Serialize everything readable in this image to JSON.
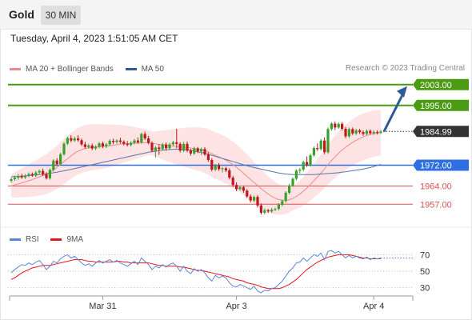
{
  "header": {
    "symbol": "Gold",
    "timeframe": "30 MIN"
  },
  "datetime": "Tuesday, April 4, 2023 1:51:05 AM CET",
  "credit": "Research © 2023 Trading Central",
  "legend": [
    {
      "label": "MA 20 + Bollinger Bands",
      "color": "#f08a8a"
    },
    {
      "label": "MA 50",
      "color": "#2d5b9a"
    }
  ],
  "rsi_legend": [
    {
      "label": "RSI",
      "color": "#5b86d6"
    },
    {
      "label": "9MA",
      "color": "#e8141b"
    }
  ],
  "colors": {
    "up": "#3aa02a",
    "down": "#c0161c",
    "resistance": "#4a9b12",
    "pivot": "#2f6fe0",
    "support": "#e05050",
    "bands": "#fde3e3",
    "current": "#333333",
    "arrow": "#2d5b9a"
  },
  "chart_data": [
    {
      "type": "candlestick",
      "title": "",
      "x_tick_labels": [
        "Mar 31",
        "Apr 3",
        "Apr 4"
      ],
      "current_price": {
        "label": "1984.99",
        "value": 1984.99
      },
      "levels": [
        {
          "label": "2003.00",
          "value": 2003.0,
          "kind": "resistance"
        },
        {
          "label": "1995.00",
          "value": 1995.0,
          "kind": "resistance"
        },
        {
          "label": "1972.00",
          "value": 1972.0,
          "kind": "pivot"
        },
        {
          "label": "1964.00",
          "value": 1964.0,
          "kind": "support"
        },
        {
          "label": "1957.00",
          "value": 1957.0,
          "kind": "support"
        }
      ],
      "ylim": [
        1950,
        2006
      ],
      "forecast_arrow": {
        "from": 1984.99,
        "to": 2003.0
      },
      "candles": [
        [
          1966.0,
          1967.2,
          1965.3,
          1966.6
        ],
        [
          1966.6,
          1968.0,
          1966.0,
          1967.2
        ],
        [
          1967.2,
          1968.6,
          1966.4,
          1967.8
        ],
        [
          1967.8,
          1968.7,
          1966.7,
          1967.3
        ],
        [
          1967.3,
          1968.6,
          1966.7,
          1968.0
        ],
        [
          1968.0,
          1969.2,
          1967.4,
          1968.6
        ],
        [
          1968.6,
          1969.2,
          1967.5,
          1968.1
        ],
        [
          1968.1,
          1969.8,
          1967.5,
          1969.2
        ],
        [
          1969.2,
          1970.4,
          1968.6,
          1969.8
        ],
        [
          1969.8,
          1970.7,
          1967.9,
          1968.5
        ],
        [
          1968.5,
          1969.3,
          1966.5,
          1967.0
        ],
        [
          1967.0,
          1970.8,
          1966.4,
          1970.2
        ],
        [
          1970.2,
          1974.3,
          1969.6,
          1973.8
        ],
        [
          1973.8,
          1974.7,
          1971.7,
          1972.4
        ],
        [
          1972.4,
          1976.8,
          1971.8,
          1976.2
        ],
        [
          1976.2,
          1980.9,
          1975.6,
          1980.3
        ],
        [
          1980.3,
          1983.0,
          1979.7,
          1982.4
        ],
        [
          1982.4,
          1983.5,
          1980.8,
          1981.5
        ],
        [
          1981.5,
          1983.0,
          1980.9,
          1982.3
        ],
        [
          1982.3,
          1983.5,
          1981.0,
          1981.6
        ],
        [
          1981.6,
          1982.2,
          1979.4,
          1980.0
        ],
        [
          1980.0,
          1981.0,
          1978.4,
          1979.0
        ],
        [
          1979.0,
          1980.2,
          1978.4,
          1979.6
        ],
        [
          1979.6,
          1980.3,
          1977.8,
          1978.4
        ],
        [
          1978.4,
          1979.7,
          1977.8,
          1979.1
        ],
        [
          1979.1,
          1981.0,
          1978.5,
          1980.4
        ],
        [
          1980.4,
          1981.1,
          1978.6,
          1979.2
        ],
        [
          1979.2,
          1980.6,
          1978.6,
          1980.0
        ],
        [
          1980.0,
          1982.0,
          1979.4,
          1981.4
        ],
        [
          1981.4,
          1982.2,
          1980.1,
          1980.9
        ],
        [
          1980.9,
          1982.0,
          1980.3,
          1981.5
        ],
        [
          1981.5,
          1982.6,
          1980.3,
          1981.0
        ],
        [
          1981.0,
          1981.6,
          1979.6,
          1980.2
        ],
        [
          1980.2,
          1981.3,
          1979.2,
          1979.8
        ],
        [
          1979.8,
          1981.2,
          1979.2,
          1980.6
        ],
        [
          1980.6,
          1982.1,
          1980.0,
          1981.5
        ],
        [
          1981.5,
          1982.7,
          1980.2,
          1980.8
        ],
        [
          1980.8,
          1984.5,
          1980.2,
          1984.0
        ],
        [
          1984.0,
          1984.9,
          1981.7,
          1982.3
        ],
        [
          1982.3,
          1983.3,
          1980.0,
          1980.6
        ],
        [
          1980.6,
          1981.2,
          1977.0,
          1977.6
        ],
        [
          1977.6,
          1979.4,
          1975.0,
          1978.8
        ],
        [
          1978.8,
          1980.0,
          1976.0,
          1978.2
        ],
        [
          1978.2,
          1980.6,
          1977.6,
          1980.0
        ],
        [
          1980.0,
          1980.7,
          1977.6,
          1978.5
        ],
        [
          1978.5,
          1980.6,
          1977.9,
          1980.0
        ],
        [
          1980.0,
          1981.4,
          1979.4,
          1980.8
        ],
        [
          1980.8,
          1986.0,
          1978.5,
          1980.2
        ],
        [
          1980.2,
          1980.8,
          1976.9,
          1977.6
        ],
        [
          1977.6,
          1981.0,
          1977.0,
          1980.2
        ],
        [
          1980.2,
          1981.1,
          1977.0,
          1977.6
        ],
        [
          1977.6,
          1978.3,
          1975.7,
          1976.5
        ],
        [
          1976.5,
          1979.1,
          1975.9,
          1978.5
        ],
        [
          1978.5,
          1979.0,
          1976.6,
          1977.3
        ],
        [
          1977.3,
          1978.8,
          1975.9,
          1978.2
        ],
        [
          1978.2,
          1979.0,
          1975.6,
          1976.1
        ],
        [
          1976.1,
          1976.9,
          1973.3,
          1974.0
        ],
        [
          1974.0,
          1974.7,
          1969.6,
          1970.3
        ],
        [
          1970.3,
          1972.5,
          1969.7,
          1971.9
        ],
        [
          1971.9,
          1972.8,
          1969.8,
          1970.5
        ],
        [
          1970.5,
          1971.4,
          1969.2,
          1970.8
        ],
        [
          1970.8,
          1971.4,
          1969.4,
          1970.0
        ],
        [
          1970.0,
          1970.8,
          1966.5,
          1967.2
        ],
        [
          1967.2,
          1967.9,
          1963.7,
          1964.4
        ],
        [
          1964.4,
          1965.4,
          1962.0,
          1962.8
        ],
        [
          1962.8,
          1964.0,
          1962.2,
          1963.5
        ],
        [
          1963.5,
          1964.2,
          1961.4,
          1962.2
        ],
        [
          1962.2,
          1962.8,
          1959.4,
          1960.0
        ],
        [
          1960.0,
          1960.8,
          1957.6,
          1958.4
        ],
        [
          1958.4,
          1960.4,
          1957.8,
          1959.8
        ],
        [
          1959.8,
          1960.5,
          1955.8,
          1956.5
        ],
        [
          1956.5,
          1957.3,
          1953.0,
          1953.7
        ],
        [
          1953.7,
          1955.3,
          1953.1,
          1954.7
        ],
        [
          1954.7,
          1955.2,
          1953.6,
          1954.2
        ],
        [
          1954.2,
          1955.5,
          1953.6,
          1954.9
        ],
        [
          1954.9,
          1955.7,
          1954.3,
          1955.2
        ],
        [
          1955.2,
          1957.4,
          1954.6,
          1956.8
        ],
        [
          1956.8,
          1958.8,
          1956.2,
          1958.2
        ],
        [
          1958.2,
          1962.0,
          1957.6,
          1961.4
        ],
        [
          1961.4,
          1964.8,
          1960.8,
          1964.2
        ],
        [
          1964.2,
          1967.4,
          1963.6,
          1966.8
        ],
        [
          1966.8,
          1970.5,
          1966.2,
          1969.9
        ],
        [
          1969.9,
          1970.9,
          1968.8,
          1970.3
        ],
        [
          1970.3,
          1973.8,
          1969.7,
          1973.2
        ],
        [
          1973.2,
          1975.4,
          1971.3,
          1972.0
        ],
        [
          1972.0,
          1976.4,
          1971.4,
          1975.8
        ],
        [
          1975.8,
          1979.2,
          1975.2,
          1978.6
        ],
        [
          1978.6,
          1980.4,
          1977.5,
          1978.2
        ],
        [
          1978.2,
          1982.1,
          1977.6,
          1981.5
        ],
        [
          1981.5,
          1982.7,
          1976.2,
          1977.0
        ],
        [
          1977.0,
          1986.5,
          1976.4,
          1985.9
        ],
        [
          1985.9,
          1988.6,
          1985.3,
          1988.0
        ],
        [
          1988.0,
          1988.8,
          1985.5,
          1986.5
        ],
        [
          1986.5,
          1988.5,
          1986.0,
          1987.9
        ],
        [
          1987.9,
          1988.6,
          1985.3,
          1986.0
        ],
        [
          1986.0,
          1986.7,
          1982.4,
          1983.1
        ],
        [
          1983.1,
          1986.5,
          1982.5,
          1985.9
        ],
        [
          1985.9,
          1986.5,
          1983.6,
          1984.2
        ],
        [
          1984.2,
          1986.0,
          1983.6,
          1985.4
        ],
        [
          1985.4,
          1986.0,
          1984.0,
          1984.7
        ],
        [
          1984.7,
          1985.4,
          1983.3,
          1984.0
        ],
        [
          1984.0,
          1985.8,
          1983.4,
          1985.2
        ],
        [
          1985.2,
          1985.8,
          1983.7,
          1984.3
        ],
        [
          1984.3,
          1985.4,
          1983.7,
          1984.8
        ],
        [
          1984.8,
          1985.4,
          1983.8,
          1984.5
        ],
        [
          1984.5,
          1985.6,
          1984.0,
          1984.99
        ]
      ],
      "ma20": [
        1964.0,
        1964.4,
        1964.8,
        1965.2,
        1965.6,
        1966.0,
        1966.5,
        1967.0,
        1967.5,
        1968.0,
        1968.6,
        1969.3,
        1970.2,
        1971.2,
        1972.3,
        1973.4,
        1974.5,
        1975.6,
        1976.6,
        1977.4,
        1978.0,
        1978.4,
        1978.7,
        1978.9,
        1979.0,
        1979.1,
        1979.2,
        1979.3,
        1979.5,
        1979.7,
        1979.9,
        1980.1,
        1980.2,
        1980.3,
        1980.4,
        1980.5,
        1980.5,
        1980.6,
        1980.7,
        1980.6,
        1980.4,
        1980.2,
        1980.0,
        1979.8,
        1979.6,
        1979.5,
        1979.3,
        1979.2,
        1979.0,
        1978.9,
        1978.8,
        1978.6,
        1978.4,
        1978.2,
        1978.0,
        1977.6,
        1977.1,
        1976.4,
        1975.8,
        1975.2,
        1974.6,
        1973.9,
        1973.1,
        1972.2,
        1971.2,
        1970.1,
        1968.9,
        1967.7,
        1966.5,
        1965.4,
        1964.2,
        1963.0,
        1961.9,
        1960.9,
        1960.0,
        1959.3,
        1958.8,
        1958.5,
        1958.5,
        1958.7,
        1959.2,
        1960.0,
        1960.9,
        1962.0,
        1963.2,
        1964.6,
        1966.0,
        1967.5,
        1969.0,
        1970.6,
        1972.3,
        1973.8,
        1975.2,
        1976.6,
        1977.8,
        1978.9,
        1979.9,
        1980.8,
        1981.6,
        1982.3,
        1982.9,
        1983.4,
        1983.8,
        1984.1,
        1984.3,
        1984.5
      ],
      "ma50": [
        1967.5,
        1967.6,
        1967.7,
        1967.8,
        1967.9,
        1968.0,
        1968.1,
        1968.2,
        1968.4,
        1968.5,
        1968.7,
        1968.9,
        1969.1,
        1969.3,
        1969.6,
        1969.8,
        1970.1,
        1970.4,
        1970.7,
        1971.0,
        1971.3,
        1971.6,
        1971.9,
        1972.2,
        1972.5,
        1972.8,
        1973.1,
        1973.4,
        1973.7,
        1974.0,
        1974.3,
        1974.6,
        1974.9,
        1975.2,
        1975.5,
        1975.8,
        1976.1,
        1976.4,
        1976.7,
        1977.0,
        1977.2,
        1977.4,
        1977.6,
        1977.8,
        1977.9,
        1978.0,
        1978.1,
        1978.1,
        1978.1,
        1978.0,
        1977.9,
        1977.7,
        1977.5,
        1977.2,
        1976.9,
        1976.6,
        1976.2,
        1975.8,
        1975.4,
        1975.0,
        1974.6,
        1974.2,
        1973.8,
        1973.4,
        1973.0,
        1972.6,
        1972.2,
        1971.8,
        1971.4,
        1971.1,
        1970.8,
        1970.5,
        1970.2,
        1969.9,
        1969.6,
        1969.3,
        1969.0,
        1968.8,
        1968.6,
        1968.5,
        1968.4,
        1968.4,
        1968.4,
        1968.4,
        1968.4,
        1968.4,
        1968.4,
        1968.5,
        1968.6,
        1968.7,
        1968.8,
        1968.9,
        1969.0,
        1969.1,
        1969.3,
        1969.5,
        1969.7,
        1969.9,
        1970.1,
        1970.3,
        1970.5,
        1970.8,
        1971.1,
        1971.5,
        1971.9,
        1972.3
      ]
    },
    {
      "type": "line",
      "title": "",
      "y_tick_labels": [
        "70",
        "50",
        "30"
      ],
      "ylim": [
        20,
        80
      ],
      "series": [
        {
          "name": "RSI",
          "values": [
            48,
            52,
            55,
            58,
            57,
            60,
            58,
            61,
            63,
            58,
            52,
            56,
            62,
            60,
            65,
            68,
            70,
            66,
            68,
            64,
            60,
            57,
            59,
            56,
            60,
            63,
            60,
            62,
            64,
            61,
            63,
            60,
            58,
            56,
            59,
            62,
            58,
            66,
            62,
            58,
            52,
            56,
            54,
            58,
            55,
            58,
            60,
            56,
            50,
            56,
            50,
            47,
            53,
            50,
            52,
            48,
            42,
            38,
            45,
            42,
            44,
            42,
            36,
            32,
            31,
            34,
            32,
            30,
            28,
            32,
            26,
            24,
            27,
            26,
            29,
            30,
            34,
            38,
            44,
            50,
            54,
            60,
            61,
            66,
            62,
            66,
            70,
            68,
            72,
            64,
            74,
            75,
            72,
            74,
            70,
            66,
            69,
            66,
            68,
            66,
            65,
            67,
            64,
            66,
            65,
            66
          ]
        },
        {
          "name": "9MA",
          "values": [
            40,
            42,
            45,
            48,
            50,
            52,
            54,
            55,
            56,
            57,
            57,
            57,
            58,
            59,
            60,
            61,
            62,
            63,
            64,
            64,
            64,
            63,
            62,
            62,
            61,
            61,
            61,
            61,
            61,
            61,
            62,
            62,
            61,
            61,
            60,
            60,
            60,
            60,
            60,
            60,
            59,
            58,
            57,
            57,
            56,
            56,
            56,
            56,
            55,
            55,
            54,
            53,
            52,
            51,
            51,
            50,
            49,
            48,
            47,
            46,
            45,
            44,
            43,
            41,
            40,
            39,
            38,
            36,
            35,
            34,
            33,
            31,
            30,
            29,
            29,
            29,
            29,
            30,
            32,
            34,
            37,
            40,
            44,
            48,
            52,
            55,
            58,
            61,
            63,
            65,
            67,
            68,
            69,
            70,
            70,
            70,
            70,
            69,
            68,
            67,
            66,
            66,
            65,
            65,
            65,
            65
          ]
        }
      ]
    }
  ]
}
